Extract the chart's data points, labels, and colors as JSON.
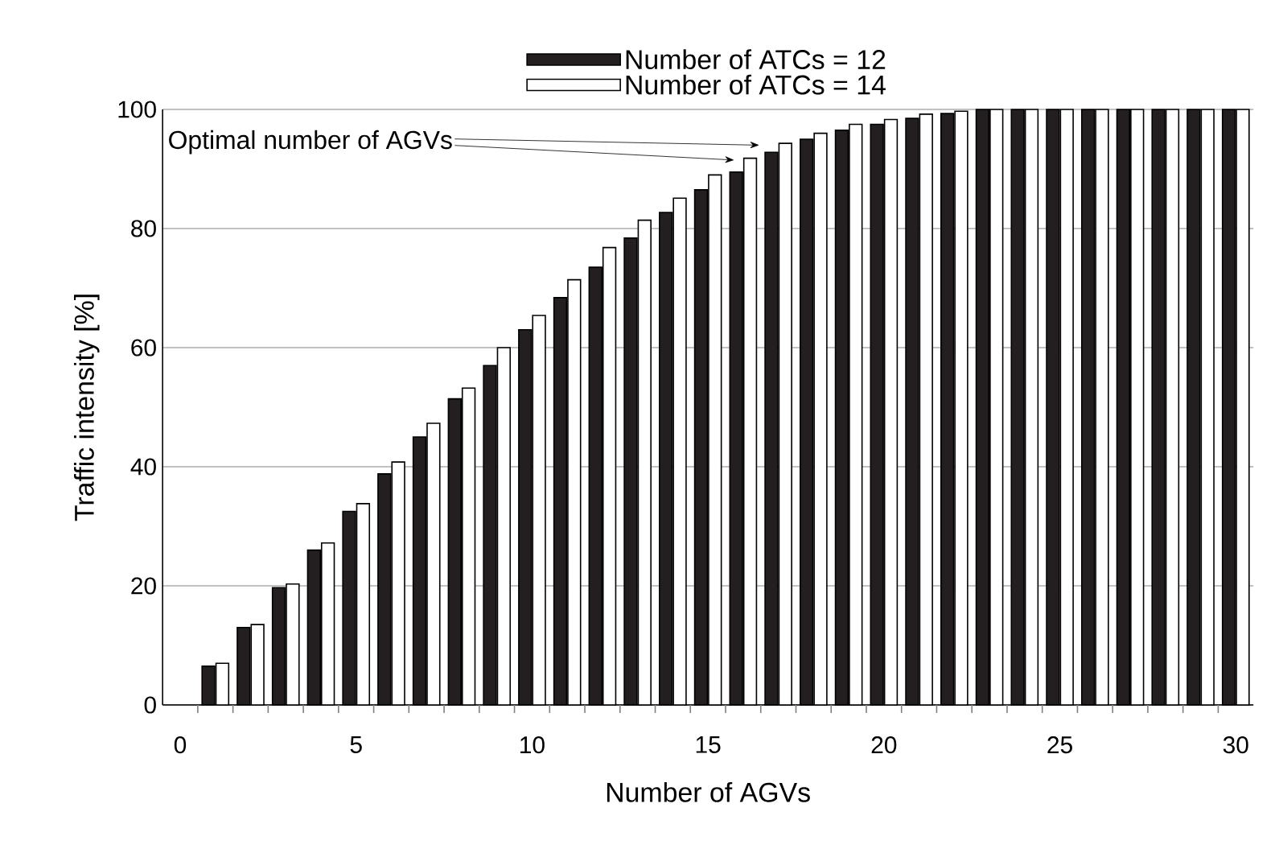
{
  "chart_data": {
    "type": "bar",
    "xlabel": "Number of AGVs",
    "ylabel": "Traffic intensity [%]",
    "x": [
      1,
      2,
      3,
      4,
      5,
      6,
      7,
      8,
      9,
      10,
      11,
      12,
      13,
      14,
      15,
      16,
      17,
      18,
      19,
      20,
      21,
      22,
      23,
      24,
      25,
      26,
      27,
      28,
      29,
      30
    ],
    "series": [
      {
        "name": "Number of ATCs = 12",
        "color": "#231f20",
        "values": [
          6.5,
          13,
          19.7,
          26,
          32.5,
          38.8,
          45,
          51.4,
          57,
          63,
          68.4,
          73.5,
          78.4,
          82.7,
          86.5,
          89.5,
          92.8,
          95,
          96.5,
          97.5,
          98.5,
          99.3,
          100,
          100,
          100,
          100,
          100,
          100,
          100,
          100
        ]
      },
      {
        "name": "Number of ATCs = 14",
        "color": "#ffffff",
        "values": [
          7,
          13.5,
          20.3,
          27.2,
          33.8,
          40.8,
          47.3,
          53.2,
          60,
          65.4,
          71.4,
          76.8,
          81.4,
          85.1,
          89,
          91.8,
          94.3,
          96,
          97.5,
          98.3,
          99.2,
          99.7,
          100,
          100,
          100,
          100,
          100,
          100,
          100,
          100
        ]
      }
    ],
    "xlim": [
      -0.5,
      30.5
    ],
    "ylim": [
      0,
      100
    ],
    "xticks": [
      0,
      5,
      10,
      15,
      20,
      25,
      30,
      {
        "value": 0.5,
        "label": null
      },
      {
        "value": 1.5,
        "label": null
      },
      {
        "value": 2.5,
        "label": null
      },
      {
        "value": 3.5,
        "label": null
      },
      {
        "value": 4.5,
        "label": null
      },
      {
        "value": 5.5,
        "label": null
      },
      {
        "value": 6.5,
        "label": null
      },
      {
        "value": 7.5,
        "label": null
      },
      {
        "value": 8.5,
        "label": null
      },
      {
        "value": 9.5,
        "label": null
      },
      {
        "value": 10.5,
        "label": null
      },
      {
        "value": 11.5,
        "label": null
      },
      {
        "value": 12.5,
        "label": null
      },
      {
        "value": 13.5,
        "label": null
      },
      {
        "value": 14.5,
        "label": null
      },
      {
        "value": 15.5,
        "label": null
      },
      {
        "value": 16.5,
        "label": null
      },
      {
        "value": 17.5,
        "label": null
      },
      {
        "value": 18.5,
        "label": null
      },
      {
        "value": 19.5,
        "label": null
      },
      {
        "value": 20.5,
        "label": null
      },
      {
        "value": 21.5,
        "label": null
      },
      {
        "value": 22.5,
        "label": null
      },
      {
        "value": 23.5,
        "label": null
      },
      {
        "value": 24.5,
        "label": null
      },
      {
        "value": 25.5,
        "label": null
      },
      {
        "value": 26.5,
        "label": null
      },
      {
        "value": 27.5,
        "label": null
      },
      {
        "value": 28.5,
        "label": null
      },
      {
        "value": 29.5,
        "label": null
      }
    ],
    "yticks": [
      0,
      20,
      40,
      60,
      80,
      100
    ],
    "grid": "y",
    "legend": "top",
    "annotations": [
      "Optimal number of AGVs"
    ]
  }
}
